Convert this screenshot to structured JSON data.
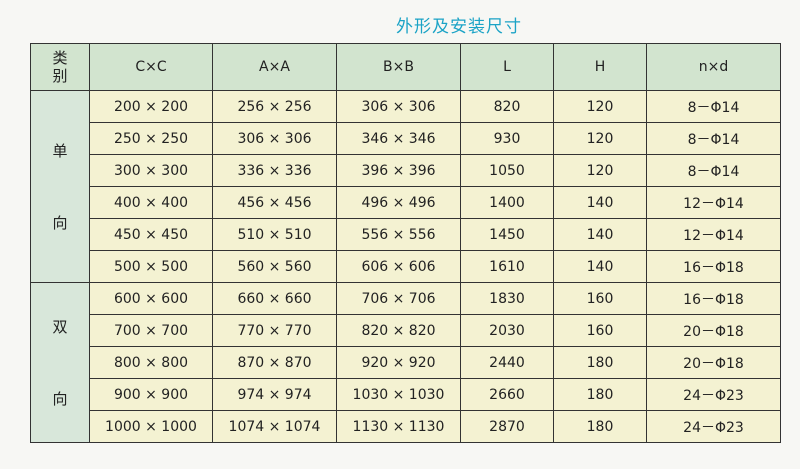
{
  "title": "外形及安装尺寸",
  "headers": [
    "类\n别",
    "C×C",
    "A×A",
    "B×B",
    "L",
    "H",
    "n×d"
  ],
  "groups": [
    {
      "label": "单向",
      "rows": [
        [
          "200 × 200",
          "256 × 256",
          "306 × 306",
          "820",
          "120",
          "8－Φ14"
        ],
        [
          "250 × 250",
          "306 × 306",
          "346 × 346",
          "930",
          "120",
          "8－Φ14"
        ],
        [
          "300 × 300",
          "336 × 336",
          "396 × 396",
          "1050",
          "120",
          "8－Φ14"
        ],
        [
          "400 × 400",
          "456 × 456",
          "496 × 496",
          "1400",
          "140",
          "12－Φ14"
        ],
        [
          "450 × 450",
          "510 × 510",
          "556 × 556",
          "1450",
          "140",
          "12－Φ14"
        ],
        [
          "500 × 500",
          "560 × 560",
          "606 × 606",
          "1610",
          "140",
          "16－Φ18"
        ]
      ]
    },
    {
      "label": "双向",
      "rows": [
        [
          "600 × 600",
          "660 × 660",
          "706 × 706",
          "1830",
          "160",
          "16－Φ18"
        ],
        [
          "700 × 700",
          "770 × 770",
          "820 × 820",
          "2030",
          "160",
          "20－Φ18"
        ],
        [
          "800 × 800",
          "870 × 870",
          "920 × 920",
          "2440",
          "180",
          "20－Φ18"
        ],
        [
          "900 × 900",
          "974 × 974",
          "1030 × 1030",
          "2660",
          "180",
          "24－Φ23"
        ],
        [
          "1000 × 1000",
          "1074 × 1074",
          "1130 × 1130",
          "2870",
          "180",
          "24－Φ23"
        ]
      ]
    }
  ]
}
